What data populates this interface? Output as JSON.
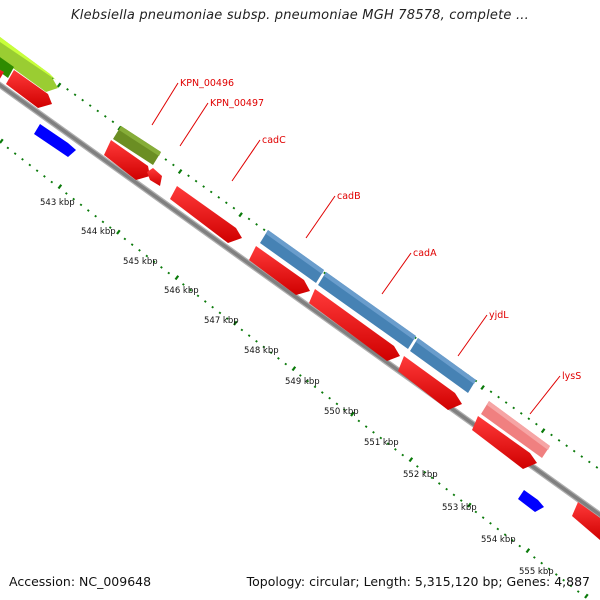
{
  "title": "Klebsiella pneumoniae subsp. pneumoniae MGH 78578, complete ...",
  "footer": {
    "accession": "Accession: NC_009648",
    "summary": "Topology: circular; Length: 5,315,120 bp; Genes: 4,887"
  },
  "scale_labels": [
    "543 kbp",
    "544 kbp",
    "545 kbp",
    "546 kbp",
    "547 kbp",
    "548 kbp",
    "549 kbp",
    "550 kbp",
    "551 kbp",
    "552 kbp",
    "553 kbp",
    "554 kbp",
    "555 kbp"
  ],
  "gene_labels": [
    "KPN_00496",
    "KPN_00497",
    "cadC",
    "cadB",
    "cadA",
    "yjdL",
    "lysS"
  ],
  "colors": {
    "cds_red": "#ff0000",
    "cds_blue": "#4682b4",
    "cds_olive": "#6b8e23",
    "cds_lightgreen": "#adff2f",
    "cds_pink": "#f08080",
    "cds_darkblue": "#0000ff",
    "backbone": "#888888",
    "tick_green": "#0a7a0a",
    "label_red": "#e00000"
  }
}
